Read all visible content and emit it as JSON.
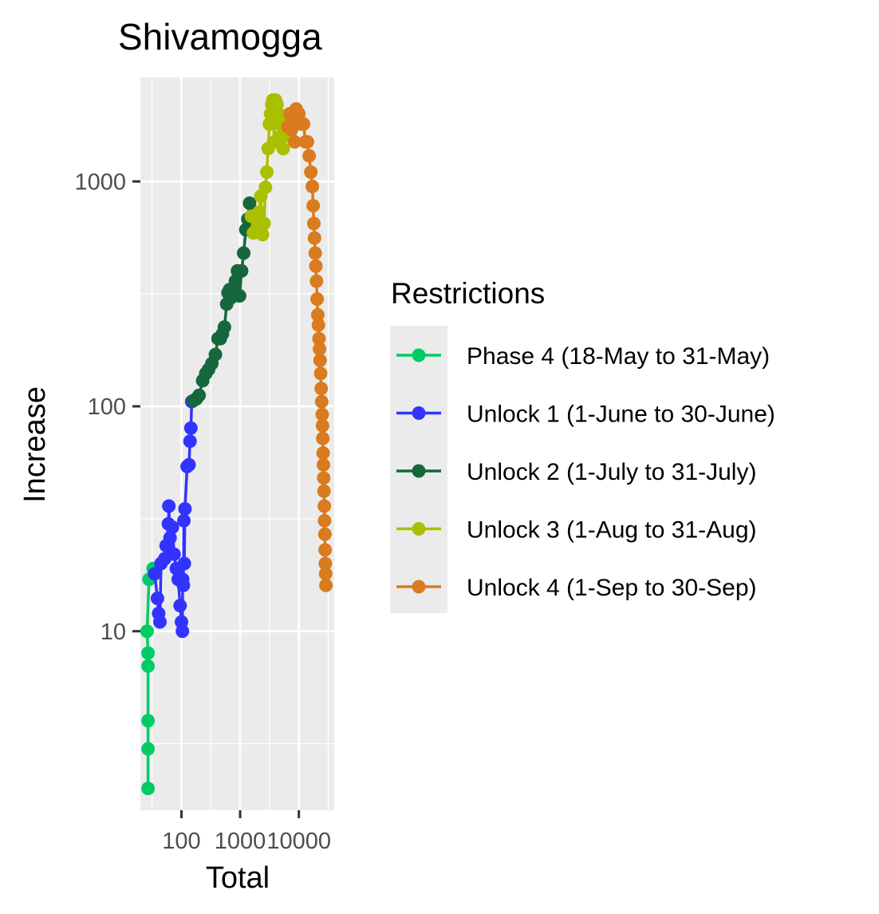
{
  "chart_data": {
    "type": "line",
    "title": "Shivamogga",
    "xlabel": "Total",
    "ylabel": "Increase",
    "x_scale": "log10",
    "y_scale": "log10",
    "xlim": [
      20,
      40000
    ],
    "ylim": [
      1.6,
      2900
    ],
    "x_ticks": [
      100,
      1000,
      10000
    ],
    "x_tick_labels": [
      "100",
      "1000",
      "10000"
    ],
    "y_ticks": [
      10,
      100,
      1000
    ],
    "y_tick_labels": [
      "10",
      "100",
      "1000"
    ],
    "grid": true,
    "legend_title": "Restrictions",
    "legend_position": "right",
    "series": [
      {
        "name": "Phase 4 (18-May to 31-May)",
        "color": "#00CC66",
        "points": [
          [
            27,
            2
          ],
          [
            27,
            3
          ],
          [
            27,
            4
          ],
          [
            27,
            7
          ],
          [
            27,
            8
          ],
          [
            26,
            10
          ],
          [
            28,
            17
          ],
          [
            33,
            19
          ]
        ]
      },
      {
        "name": "Unlock 1 (1-June to 30-June)",
        "color": "#3333FF",
        "points": [
          [
            35,
            18
          ],
          [
            39,
            14
          ],
          [
            41,
            12
          ],
          [
            43,
            11
          ],
          [
            45,
            20
          ],
          [
            52,
            21
          ],
          [
            55,
            24
          ],
          [
            60,
            30
          ],
          [
            61,
            36
          ],
          [
            64,
            26
          ],
          [
            70,
            29
          ],
          [
            75,
            22
          ],
          [
            82,
            19
          ],
          [
            88,
            17
          ],
          [
            95,
            13
          ],
          [
            100,
            11
          ],
          [
            104,
            10
          ],
          [
            105,
            17
          ],
          [
            108,
            16
          ],
          [
            110,
            31
          ],
          [
            112,
            20
          ],
          [
            115,
            35
          ],
          [
            125,
            54
          ],
          [
            135,
            55
          ],
          [
            140,
            70
          ],
          [
            145,
            80
          ],
          [
            150,
            105
          ]
        ]
      },
      {
        "name": "Unlock 2 (1-July to 31-July)",
        "color": "#16673C",
        "points": [
          [
            160,
            106
          ],
          [
            180,
            108
          ],
          [
            200,
            112
          ],
          [
            230,
            130
          ],
          [
            260,
            140
          ],
          [
            290,
            146
          ],
          [
            330,
            155
          ],
          [
            380,
            170
          ],
          [
            420,
            200
          ],
          [
            460,
            200
          ],
          [
            500,
            210
          ],
          [
            540,
            225
          ],
          [
            590,
            285
          ],
          [
            620,
            320
          ],
          [
            660,
            330
          ],
          [
            710,
            305
          ],
          [
            760,
            320
          ],
          [
            830,
            360
          ],
          [
            900,
            400
          ],
          [
            980,
            310
          ],
          [
            1060,
            400
          ],
          [
            1150,
            480
          ],
          [
            1250,
            610
          ],
          [
            1350,
            680
          ],
          [
            1450,
            800
          ]
        ]
      },
      {
        "name": "Unlock 3 (1-Aug to 31-Aug)",
        "color": "#AABF00",
        "points": [
          [
            1550,
            700
          ],
          [
            1680,
            590
          ],
          [
            1800,
            600
          ],
          [
            1950,
            620
          ],
          [
            2100,
            730
          ],
          [
            2250,
            860
          ],
          [
            2400,
            580
          ],
          [
            2550,
            650
          ],
          [
            2700,
            940
          ],
          [
            2850,
            1100
          ],
          [
            3000,
            1400
          ],
          [
            3150,
            1800
          ],
          [
            3300,
            2000
          ],
          [
            3450,
            2200
          ],
          [
            3600,
            2300
          ],
          [
            3800,
            1500
          ],
          [
            4000,
            2300
          ],
          [
            4250,
            2200
          ],
          [
            4500,
            2000
          ],
          [
            4800,
            1800
          ],
          [
            5100,
            1600
          ],
          [
            5400,
            1400
          ],
          [
            5800,
            1900
          ],
          [
            6200,
            1600
          ]
        ]
      },
      {
        "name": "Unlock 4 (1-Sep to 30-Sep)",
        "color": "#D97B1E",
        "points": [
          [
            6500,
            1750
          ],
          [
            7000,
            2000
          ],
          [
            7500,
            1700
          ],
          [
            8000,
            1900
          ],
          [
            8500,
            1500
          ],
          [
            9000,
            2100
          ],
          [
            10000,
            2000
          ],
          [
            11000,
            1800
          ],
          [
            12000,
            1800
          ],
          [
            13000,
            1500
          ],
          [
            14000,
            1500
          ],
          [
            15000,
            1300
          ],
          [
            16000,
            1100
          ],
          [
            17000,
            950
          ],
          [
            17500,
            780
          ],
          [
            18000,
            650
          ],
          [
            18500,
            560
          ],
          [
            19000,
            480
          ],
          [
            19500,
            420
          ],
          [
            20000,
            360
          ],
          [
            20500,
            300
          ],
          [
            21000,
            255
          ],
          [
            21500,
            230
          ],
          [
            22000,
            200
          ],
          [
            22500,
            180
          ],
          [
            23000,
            160
          ],
          [
            23500,
            140
          ],
          [
            24000,
            120
          ],
          [
            24500,
            105
          ],
          [
            25000,
            92
          ],
          [
            25300,
            82
          ],
          [
            25600,
            72
          ],
          [
            25900,
            62
          ],
          [
            26200,
            55
          ],
          [
            26500,
            48
          ],
          [
            26800,
            42
          ],
          [
            27100,
            36
          ],
          [
            27400,
            31
          ],
          [
            27700,
            27
          ],
          [
            28000,
            23
          ],
          [
            28300,
            20
          ],
          [
            28600,
            18
          ],
          [
            28900,
            16
          ]
        ]
      }
    ]
  }
}
